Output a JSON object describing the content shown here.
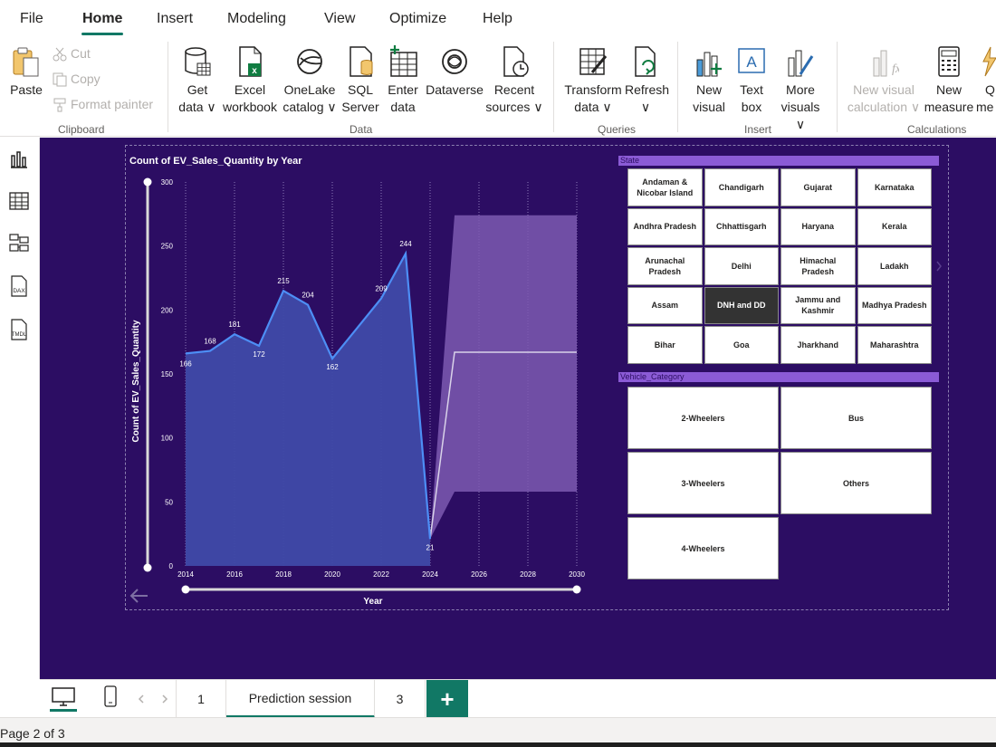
{
  "menu": {
    "items": [
      "File",
      "Home",
      "Insert",
      "Modeling",
      "View",
      "Optimize",
      "Help"
    ],
    "active": "Home"
  },
  "ribbon": {
    "paste": "Paste",
    "cut": "Cut",
    "copy": "Copy",
    "format_painter": "Format painter",
    "clipboard_group": "Clipboard",
    "get_data": [
      "Get",
      "data ∨"
    ],
    "excel": [
      "Excel",
      "workbook"
    ],
    "onelake": [
      "OneLake",
      "catalog ∨"
    ],
    "sql": [
      "SQL",
      "Server"
    ],
    "enter_data": [
      "Enter",
      "data"
    ],
    "dataverse": [
      "Dataverse",
      ""
    ],
    "recent_sources": [
      "Recent",
      "sources ∨"
    ],
    "data_group": "Data",
    "transform": [
      "Transform",
      "data ∨"
    ],
    "refresh": [
      "Refresh",
      "∨"
    ],
    "queries_group": "Queries",
    "new_visual": [
      "New",
      "visual"
    ],
    "text_box": [
      "Text",
      "box"
    ],
    "more_visuals": [
      "More",
      "visuals ∨"
    ],
    "insert_group": "Insert",
    "new_visual_calc": [
      "New visual",
      "calculation ∨"
    ],
    "new_measure": [
      "New",
      "measure"
    ],
    "quick_measure": [
      "Q",
      "me"
    ],
    "calc_group": "Calculations"
  },
  "rail": {
    "icons": [
      "report-view-icon",
      "table-view-icon",
      "model-view-icon",
      "dax-query-icon",
      "tmdl-view-icon"
    ],
    "dax_label": "DAX",
    "tmdl_label": "TMDL"
  },
  "chart_data": {
    "type": "area",
    "title": "Count of EV_Sales_Quantity by Year",
    "xlabel": "Year",
    "ylabel": "Count of EV_Sales_Quantity",
    "x": [
      2014,
      2015,
      2016,
      2017,
      2018,
      2019,
      2020,
      2022,
      2023,
      2024
    ],
    "values": [
      166,
      168,
      181,
      172,
      215,
      204,
      162,
      209,
      244,
      21
    ],
    "data_labels": [
      "166",
      "168",
      "181",
      "172",
      "215",
      "204",
      "162",
      "209",
      "244",
      "21"
    ],
    "forecast": {
      "x": [
        2025,
        2030
      ],
      "values": [
        167,
        167
      ],
      "upper": [
        274,
        274
      ],
      "lower": [
        58,
        58
      ]
    },
    "xticks": [
      "2014",
      "2016",
      "2018",
      "2020",
      "2022",
      "2024",
      "2026",
      "2028",
      "2030"
    ],
    "yticks": [
      "0",
      "50",
      "100",
      "150",
      "200",
      "250",
      "300"
    ],
    "xlim": [
      2014,
      2030
    ],
    "ylim": [
      0,
      300
    ],
    "grid": true
  },
  "state_slicer": {
    "header": "State",
    "tiles": [
      "Andaman & Nicobar Island",
      "Chandigarh",
      "Gujarat",
      "Karnataka",
      "Andhra Pradesh",
      "Chhattisgarh",
      "Haryana",
      "Kerala",
      "Arunachal Pradesh",
      "Delhi",
      "Himachal Pradesh",
      "Ladakh",
      "Assam",
      "DNH and DD",
      "Jammu and Kashmir",
      "Madhya Pradesh",
      "Bihar",
      "Goa",
      "Jharkhand",
      "Maharashtra"
    ],
    "selected": "DNH and DD"
  },
  "vehicle_slicer": {
    "header": "Vehicle_Category",
    "tiles": [
      "2-Wheelers",
      "Bus",
      "3-Wheelers",
      "Others",
      "4-Wheelers"
    ]
  },
  "tabs": {
    "pages": [
      "1",
      "Prediction session",
      "3"
    ],
    "active": "Prediction session",
    "add": "+"
  },
  "status": {
    "page": "Page 2 of 3"
  },
  "colors": {
    "accent": "#117865",
    "canvas": "#2c0d63",
    "area_fill": "#3f4aa8",
    "line": "#4d8ef5",
    "forecast_band": "#7d5bb0",
    "slicer_header": "#8b5bd6"
  }
}
